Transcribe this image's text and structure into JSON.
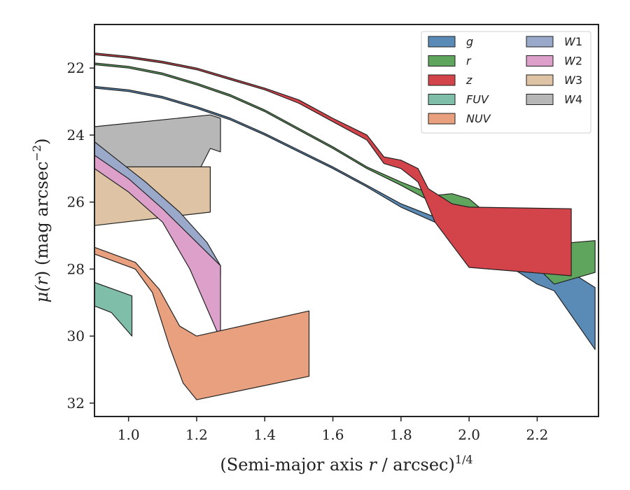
{
  "chart_data": {
    "type": "area",
    "xlabel_main": "(Semi-major axis ",
    "xlabel_var": "r",
    "xlabel_tail": " / arcsec)",
    "xlabel_sup": "1/4",
    "ylabel_main": "μ(",
    "ylabel_var": "r",
    "ylabel_tail": ") (mag arcsec",
    "ylabel_sup": "−2",
    "ylabel_close": ")",
    "xlim": [
      0.9,
      2.38
    ],
    "ylim": [
      32.4,
      20.7
    ],
    "y_inverted": true,
    "xticks": [
      1.0,
      1.2,
      1.4,
      1.6,
      1.8,
      2.0,
      2.2
    ],
    "xtick_labels": [
      "1.0",
      "1.2",
      "1.4",
      "1.6",
      "1.8",
      "2.0",
      "2.2"
    ],
    "yticks": [
      22,
      24,
      26,
      28,
      30,
      32
    ],
    "ytick_labels": [
      "22",
      "24",
      "26",
      "28",
      "30",
      "32"
    ],
    "grid": false,
    "legend_position": "top-right",
    "legend_columns": 2,
    "series": [
      {
        "name": "W4",
        "color": "#b7b7b7",
        "upper": [
          [
            0.9,
            23.75
          ],
          [
            1.24,
            23.4
          ],
          [
            1.27,
            23.5
          ]
        ],
        "lower": [
          [
            0.9,
            24.95
          ],
          [
            1.2,
            25.2
          ],
          [
            1.24,
            24.4
          ],
          [
            1.27,
            24.5
          ]
        ]
      },
      {
        "name": "W3",
        "color": "#dec4a4",
        "upper": [
          [
            0.9,
            24.95
          ],
          [
            1.24,
            24.95
          ]
        ],
        "lower": [
          [
            0.9,
            26.7
          ],
          [
            1.24,
            26.3
          ]
        ]
      },
      {
        "name": "W1",
        "color": "#9aa9c9",
        "upper": [
          [
            0.9,
            24.2
          ],
          [
            0.95,
            24.6
          ],
          [
            1.05,
            25.4
          ],
          [
            1.15,
            26.3
          ],
          [
            1.23,
            27.2
          ],
          [
            1.27,
            27.9
          ]
        ],
        "lower": [
          [
            0.9,
            24.7
          ],
          [
            0.95,
            25.1
          ],
          [
            1.05,
            25.9
          ],
          [
            1.15,
            26.8
          ],
          [
            1.22,
            27.6
          ],
          [
            1.27,
            28.2
          ]
        ]
      },
      {
        "name": "W2",
        "color": "#dda0ca",
        "upper": [
          [
            0.9,
            24.6
          ],
          [
            1.0,
            25.3
          ],
          [
            1.1,
            26.2
          ],
          [
            1.2,
            27.2
          ],
          [
            1.27,
            27.9
          ]
        ],
        "lower": [
          [
            0.9,
            25.0
          ],
          [
            1.0,
            25.7
          ],
          [
            1.1,
            26.6
          ],
          [
            1.18,
            28.0
          ],
          [
            1.27,
            30.1
          ]
        ]
      },
      {
        "name": "NUV",
        "color": "#e9a07e",
        "upper": [
          [
            0.9,
            27.35
          ],
          [
            1.02,
            27.8
          ],
          [
            1.09,
            28.6
          ],
          [
            1.15,
            29.7
          ],
          [
            1.2,
            30.0
          ],
          [
            1.53,
            29.25
          ]
        ],
        "lower": [
          [
            0.9,
            27.55
          ],
          [
            1.02,
            28.0
          ],
          [
            1.07,
            28.7
          ],
          [
            1.12,
            30.3
          ],
          [
            1.16,
            31.4
          ],
          [
            1.2,
            31.9
          ],
          [
            1.53,
            31.2
          ]
        ]
      },
      {
        "name": "FUV",
        "color": "#7fbfaa",
        "upper": [
          [
            0.9,
            28.4
          ],
          [
            1.01,
            28.8
          ]
        ],
        "lower": [
          [
            0.9,
            29.1
          ],
          [
            0.95,
            29.3
          ],
          [
            1.01,
            30.0
          ]
        ]
      },
      {
        "name": "g",
        "color": "#5a8ab6",
        "upper": [
          [
            0.9,
            22.55
          ],
          [
            1.0,
            22.65
          ],
          [
            1.1,
            22.85
          ],
          [
            1.2,
            23.15
          ],
          [
            1.3,
            23.5
          ],
          [
            1.4,
            23.95
          ],
          [
            1.5,
            24.45
          ],
          [
            1.6,
            24.95
          ],
          [
            1.7,
            25.5
          ],
          [
            1.8,
            26.05
          ],
          [
            1.9,
            26.45
          ],
          [
            2.0,
            26.95
          ],
          [
            2.1,
            27.55
          ],
          [
            2.2,
            27.95
          ],
          [
            2.3,
            28.1
          ],
          [
            2.37,
            28.55
          ]
        ],
        "lower": [
          [
            0.9,
            22.6
          ],
          [
            1.0,
            22.7
          ],
          [
            1.1,
            22.9
          ],
          [
            1.2,
            23.2
          ],
          [
            1.3,
            23.55
          ],
          [
            1.4,
            24.0
          ],
          [
            1.5,
            24.5
          ],
          [
            1.6,
            25.0
          ],
          [
            1.7,
            25.55
          ],
          [
            1.8,
            26.15
          ],
          [
            1.9,
            26.6
          ],
          [
            2.0,
            27.2
          ],
          [
            2.1,
            27.8
          ],
          [
            2.2,
            28.45
          ],
          [
            2.25,
            28.65
          ],
          [
            2.37,
            30.4
          ]
        ]
      },
      {
        "name": "r",
        "color": "#5fa55e",
        "upper": [
          [
            0.9,
            21.85
          ],
          [
            1.0,
            21.95
          ],
          [
            1.1,
            22.15
          ],
          [
            1.2,
            22.45
          ],
          [
            1.3,
            22.8
          ],
          [
            1.4,
            23.25
          ],
          [
            1.5,
            23.8
          ],
          [
            1.6,
            24.35
          ],
          [
            1.7,
            24.95
          ],
          [
            1.8,
            25.4
          ],
          [
            1.9,
            25.8
          ],
          [
            1.95,
            25.75
          ],
          [
            2.0,
            25.9
          ],
          [
            2.1,
            26.75
          ],
          [
            2.2,
            27.3
          ],
          [
            2.37,
            27.15
          ]
        ],
        "lower": [
          [
            0.9,
            21.9
          ],
          [
            1.0,
            22.0
          ],
          [
            1.1,
            22.2
          ],
          [
            1.2,
            22.5
          ],
          [
            1.3,
            22.85
          ],
          [
            1.4,
            23.3
          ],
          [
            1.5,
            23.85
          ],
          [
            1.6,
            24.4
          ],
          [
            1.7,
            25.0
          ],
          [
            1.8,
            25.5
          ],
          [
            1.9,
            26.05
          ],
          [
            2.0,
            26.7
          ],
          [
            2.1,
            27.4
          ],
          [
            2.2,
            27.95
          ],
          [
            2.25,
            28.45
          ],
          [
            2.37,
            28.1
          ]
        ]
      },
      {
        "name": "z",
        "color": "#d2434a",
        "upper": [
          [
            0.9,
            21.55
          ],
          [
            1.0,
            21.65
          ],
          [
            1.1,
            21.8
          ],
          [
            1.2,
            22.0
          ],
          [
            1.3,
            22.3
          ],
          [
            1.4,
            22.6
          ],
          [
            1.5,
            22.95
          ],
          [
            1.6,
            23.5
          ],
          [
            1.7,
            24.0
          ],
          [
            1.75,
            24.65
          ],
          [
            1.8,
            24.75
          ],
          [
            1.85,
            25.0
          ],
          [
            1.88,
            25.6
          ],
          [
            1.95,
            26.05
          ],
          [
            2.0,
            26.15
          ],
          [
            2.3,
            26.2
          ]
        ],
        "lower": [
          [
            0.9,
            21.6
          ],
          [
            1.0,
            21.7
          ],
          [
            1.1,
            21.85
          ],
          [
            1.2,
            22.05
          ],
          [
            1.3,
            22.35
          ],
          [
            1.4,
            22.65
          ],
          [
            1.5,
            23.05
          ],
          [
            1.6,
            23.6
          ],
          [
            1.7,
            24.15
          ],
          [
            1.75,
            24.85
          ],
          [
            1.8,
            25.0
          ],
          [
            1.85,
            25.4
          ],
          [
            1.9,
            26.6
          ],
          [
            2.0,
            27.95
          ],
          [
            2.3,
            28.2
          ]
        ]
      }
    ],
    "legend": {
      "columns": [
        [
          "g",
          "r",
          "z",
          "FUV",
          "NUV"
        ],
        [
          "W1",
          "W2",
          "W3",
          "W4"
        ]
      ],
      "labels": {
        "g": {
          "text": "g"
        },
        "r": {
          "text": "r"
        },
        "z": {
          "text": "z"
        },
        "FUV": {
          "text": "FUV"
        },
        "NUV": {
          "text": "NUV"
        },
        "W1": {
          "text": "W",
          "sub": "1"
        },
        "W2": {
          "text": "W",
          "sub": "2"
        },
        "W3": {
          "text": "W",
          "sub": "3"
        },
        "W4": {
          "text": "W",
          "sub": "4"
        }
      }
    },
    "colors": {
      "frame": "#222222",
      "band_edge": "#222222",
      "legend_frame": "#d0d0d0"
    }
  }
}
